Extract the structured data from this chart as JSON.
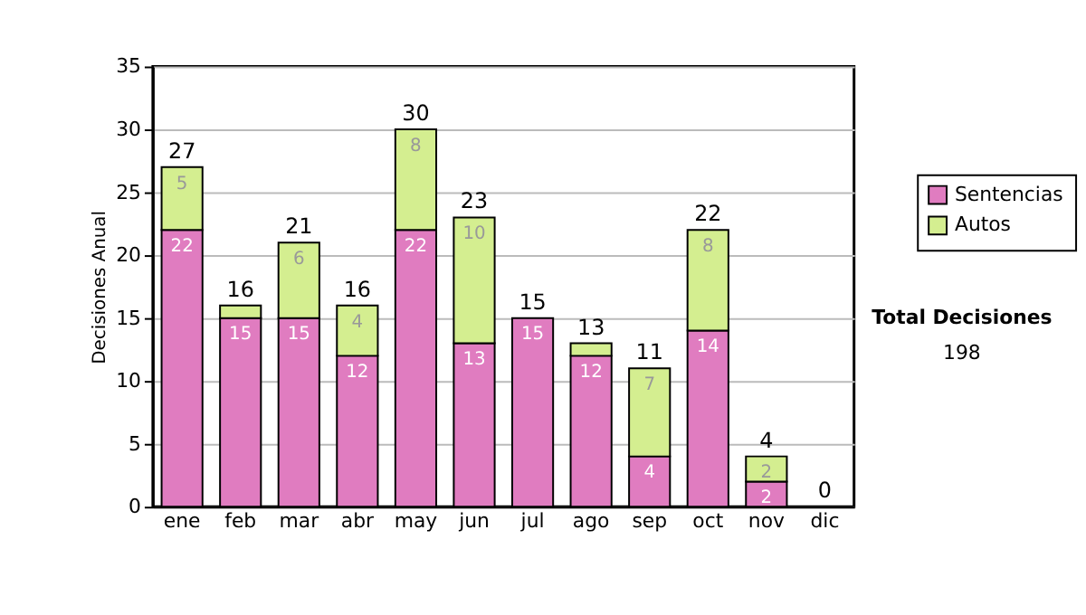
{
  "chart_data": {
    "type": "bar",
    "stacked": true,
    "ylabel": "Decisiones Anual",
    "categories": [
      "ene",
      "feb",
      "mar",
      "abr",
      "may",
      "jun",
      "jul",
      "ago",
      "sep",
      "oct",
      "nov",
      "dic"
    ],
    "series": [
      {
        "name": "Sentencias",
        "color": "#e07cc0",
        "values": [
          22,
          15,
          15,
          12,
          22,
          13,
          15,
          12,
          4,
          14,
          2,
          0
        ],
        "value_labels": [
          "22",
          "15",
          "15",
          "12",
          "22",
          "13",
          "15",
          "12",
          "4",
          "14",
          "2",
          null
        ]
      },
      {
        "name": "Autos",
        "color": "#d4ee90",
        "values": [
          5,
          1,
          6,
          4,
          8,
          10,
          0,
          1,
          7,
          8,
          2,
          0
        ],
        "value_labels": [
          "5",
          null,
          "6",
          "4",
          "8",
          "10",
          null,
          null,
          "7",
          "8",
          "2",
          null
        ]
      }
    ],
    "totals": [
      "27",
      "16",
      "21",
      "16",
      "30",
      "23",
      "15",
      "13",
      "11",
      "22",
      "4",
      "0"
    ],
    "ylim": [
      0,
      35
    ],
    "yticks": [
      0,
      5,
      10,
      15,
      20,
      25,
      30,
      35
    ],
    "grid": "y",
    "legend": "right",
    "annotations": [
      "Total Decisiones",
      "198"
    ]
  }
}
